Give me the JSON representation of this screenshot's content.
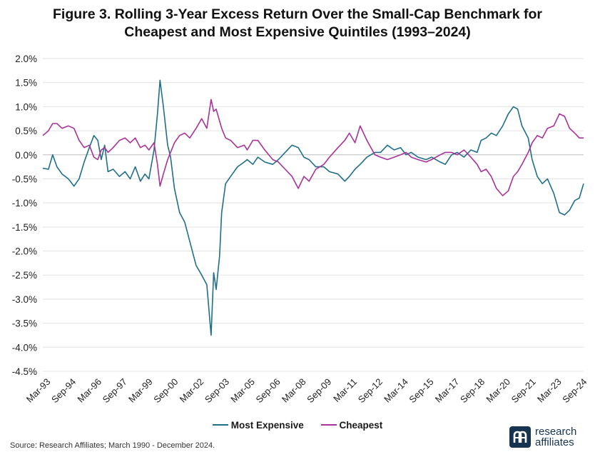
{
  "title": {
    "line1": "Figure 3. Rolling 3-Year Excess Return Over the Small-Cap Benchmark for",
    "line2": "Cheapest and Most Expensive Quintiles (1993–2024)"
  },
  "legend": {
    "most_expensive": "Most Expensive",
    "cheapest": "Cheapest"
  },
  "source": "Source: Research Affiliates; March 1990 - December 2024.",
  "logo": {
    "line1": "research",
    "line2": "affiliates"
  },
  "colors": {
    "most_expensive": "#1f6f8b",
    "cheapest": "#a8329a",
    "grid": "#e3e3e3"
  },
  "chart_data": {
    "type": "line",
    "title": "Figure 3. Rolling 3-Year Excess Return Over the Small-Cap Benchmark for Cheapest and Most Expensive Quintiles (1993–2024)",
    "xlabel": "",
    "ylabel": "",
    "ylim": [
      -4.5,
      2.0
    ],
    "yticks": [
      2.0,
      1.5,
      1.0,
      0.5,
      0.0,
      -0.5,
      -1.0,
      -1.5,
      -2.0,
      -2.5,
      -3.0,
      -3.5,
      -4.0,
      -4.5
    ],
    "ytick_labels": [
      "2.0%",
      "1.5%",
      "1.0%",
      "0.5%",
      "0.0%",
      "-0.5%",
      "-1.0%",
      "-1.5%",
      "-2.0%",
      "-2.5%",
      "-3.0%",
      "-3.5%",
      "-4.0%",
      "-4.5%"
    ],
    "xlim": [
      1993.17,
      2024.92
    ],
    "xticks": [
      1993.17,
      1994.67,
      1996.17,
      1997.67,
      1999.17,
      2000.67,
      2002.17,
      2003.67,
      2005.17,
      2006.67,
      2008.17,
      2009.67,
      2011.17,
      2012.67,
      2014.17,
      2015.67,
      2017.17,
      2018.67,
      2020.17,
      2021.67,
      2023.17,
      2024.67
    ],
    "xtick_labels": [
      "Mar-93",
      "Sep-94",
      "Mar-96",
      "Sep-97",
      "Mar-99",
      "Sep-00",
      "Mar-02",
      "Sep-03",
      "Mar-05",
      "Sep-06",
      "Mar-08",
      "Sep-09",
      "Mar-11",
      "Sep-12",
      "Mar-14",
      "Sep-15",
      "Mar-17",
      "Sep-18",
      "Mar-20",
      "Sep-21",
      "Mar-23",
      "Sep-24"
    ],
    "grid": "horizontal",
    "legend_position": "bottom-center",
    "series": [
      {
        "name": "Most Expensive",
        "color": "#1f6f8b",
        "points": [
          [
            1993.17,
            -0.28
          ],
          [
            1993.5,
            -0.3
          ],
          [
            1993.75,
            0.0
          ],
          [
            1994.0,
            -0.25
          ],
          [
            1994.3,
            -0.4
          ],
          [
            1994.67,
            -0.5
          ],
          [
            1995.0,
            -0.65
          ],
          [
            1995.3,
            -0.5
          ],
          [
            1995.6,
            -0.15
          ],
          [
            1995.9,
            0.15
          ],
          [
            1996.17,
            0.4
          ],
          [
            1996.4,
            0.3
          ],
          [
            1996.6,
            -0.1
          ],
          [
            1996.8,
            0.2
          ],
          [
            1997.0,
            -0.35
          ],
          [
            1997.3,
            -0.3
          ],
          [
            1997.67,
            -0.45
          ],
          [
            1998.0,
            -0.35
          ],
          [
            1998.3,
            -0.5
          ],
          [
            1998.6,
            -0.25
          ],
          [
            1998.9,
            -0.55
          ],
          [
            1999.17,
            -0.4
          ],
          [
            1999.4,
            -0.5
          ],
          [
            1999.7,
            0.1
          ],
          [
            1999.9,
            0.85
          ],
          [
            2000.05,
            1.55
          ],
          [
            2000.25,
            1.0
          ],
          [
            2000.5,
            0.2
          ],
          [
            2000.67,
            -0.05
          ],
          [
            2000.9,
            -0.7
          ],
          [
            2001.2,
            -1.2
          ],
          [
            2001.5,
            -1.4
          ],
          [
            2001.8,
            -1.8
          ],
          [
            2002.17,
            -2.3
          ],
          [
            2002.5,
            -2.5
          ],
          [
            2002.8,
            -2.7
          ],
          [
            2003.05,
            -3.75
          ],
          [
            2003.2,
            -2.45
          ],
          [
            2003.35,
            -2.8
          ],
          [
            2003.55,
            -2.1
          ],
          [
            2003.67,
            -1.2
          ],
          [
            2003.9,
            -0.6
          ],
          [
            2004.2,
            -0.45
          ],
          [
            2004.6,
            -0.25
          ],
          [
            2005.0,
            -0.15
          ],
          [
            2005.17,
            -0.1
          ],
          [
            2005.5,
            -0.2
          ],
          [
            2005.8,
            -0.05
          ],
          [
            2006.2,
            -0.15
          ],
          [
            2006.67,
            -0.2
          ],
          [
            2007.0,
            -0.1
          ],
          [
            2007.4,
            0.05
          ],
          [
            2007.8,
            0.2
          ],
          [
            2008.17,
            0.15
          ],
          [
            2008.5,
            -0.05
          ],
          [
            2008.8,
            -0.1
          ],
          [
            2009.2,
            -0.25
          ],
          [
            2009.67,
            -0.25
          ],
          [
            2010.0,
            -0.35
          ],
          [
            2010.5,
            -0.4
          ],
          [
            2010.9,
            -0.55
          ],
          [
            2011.17,
            -0.45
          ],
          [
            2011.5,
            -0.3
          ],
          [
            2011.8,
            -0.2
          ],
          [
            2012.2,
            -0.05
          ],
          [
            2012.67,
            0.05
          ],
          [
            2013.0,
            0.05
          ],
          [
            2013.4,
            0.2
          ],
          [
            2013.8,
            0.1
          ],
          [
            2014.17,
            0.15
          ],
          [
            2014.5,
            0.0
          ],
          [
            2014.8,
            0.05
          ],
          [
            2015.2,
            -0.05
          ],
          [
            2015.67,
            -0.1
          ],
          [
            2016.0,
            -0.05
          ],
          [
            2016.5,
            -0.15
          ],
          [
            2016.8,
            -0.2
          ],
          [
            2017.17,
            0.0
          ],
          [
            2017.5,
            0.05
          ],
          [
            2017.9,
            -0.05
          ],
          [
            2018.3,
            0.1
          ],
          [
            2018.67,
            0.05
          ],
          [
            2018.9,
            0.3
          ],
          [
            2019.2,
            0.35
          ],
          [
            2019.5,
            0.45
          ],
          [
            2019.8,
            0.4
          ],
          [
            2020.17,
            0.6
          ],
          [
            2020.5,
            0.85
          ],
          [
            2020.8,
            1.0
          ],
          [
            2021.05,
            0.95
          ],
          [
            2021.3,
            0.6
          ],
          [
            2021.67,
            0.35
          ],
          [
            2021.9,
            -0.1
          ],
          [
            2022.2,
            -0.45
          ],
          [
            2022.5,
            -0.6
          ],
          [
            2022.8,
            -0.5
          ],
          [
            2023.17,
            -0.8
          ],
          [
            2023.5,
            -1.2
          ],
          [
            2023.8,
            -1.25
          ],
          [
            2024.1,
            -1.15
          ],
          [
            2024.4,
            -0.95
          ],
          [
            2024.67,
            -0.9
          ],
          [
            2024.92,
            -0.6
          ]
        ]
      },
      {
        "name": "Cheapest",
        "color": "#a8329a",
        "points": [
          [
            1993.17,
            0.4
          ],
          [
            1993.5,
            0.5
          ],
          [
            1993.75,
            0.65
          ],
          [
            1994.0,
            0.65
          ],
          [
            1994.3,
            0.55
          ],
          [
            1994.67,
            0.6
          ],
          [
            1995.0,
            0.55
          ],
          [
            1995.3,
            0.3
          ],
          [
            1995.6,
            0.15
          ],
          [
            1995.9,
            0.2
          ],
          [
            1996.17,
            -0.05
          ],
          [
            1996.4,
            -0.1
          ],
          [
            1996.6,
            0.1
          ],
          [
            1996.8,
            0.15
          ],
          [
            1997.0,
            0.05
          ],
          [
            1997.3,
            0.15
          ],
          [
            1997.67,
            0.3
          ],
          [
            1998.0,
            0.35
          ],
          [
            1998.3,
            0.25
          ],
          [
            1998.6,
            0.35
          ],
          [
            1998.9,
            0.15
          ],
          [
            1999.17,
            0.2
          ],
          [
            1999.4,
            0.1
          ],
          [
            1999.7,
            0.25
          ],
          [
            1999.9,
            -0.2
          ],
          [
            2000.05,
            -0.65
          ],
          [
            2000.25,
            -0.4
          ],
          [
            2000.5,
            -0.1
          ],
          [
            2000.67,
            0.05
          ],
          [
            2000.9,
            0.25
          ],
          [
            2001.2,
            0.4
          ],
          [
            2001.5,
            0.45
          ],
          [
            2001.8,
            0.35
          ],
          [
            2002.17,
            0.55
          ],
          [
            2002.5,
            0.75
          ],
          [
            2002.8,
            0.55
          ],
          [
            2003.05,
            1.15
          ],
          [
            2003.2,
            0.9
          ],
          [
            2003.35,
            0.95
          ],
          [
            2003.55,
            0.7
          ],
          [
            2003.67,
            0.55
          ],
          [
            2003.9,
            0.35
          ],
          [
            2004.2,
            0.3
          ],
          [
            2004.6,
            0.15
          ],
          [
            2005.0,
            0.2
          ],
          [
            2005.17,
            0.1
          ],
          [
            2005.5,
            0.3
          ],
          [
            2005.8,
            0.3
          ],
          [
            2006.2,
            0.1
          ],
          [
            2006.67,
            -0.1
          ],
          [
            2007.0,
            -0.15
          ],
          [
            2007.4,
            -0.3
          ],
          [
            2007.8,
            -0.45
          ],
          [
            2008.17,
            -0.7
          ],
          [
            2008.5,
            -0.45
          ],
          [
            2008.8,
            -0.55
          ],
          [
            2009.2,
            -0.3
          ],
          [
            2009.67,
            -0.2
          ],
          [
            2010.0,
            -0.05
          ],
          [
            2010.5,
            0.15
          ],
          [
            2010.9,
            0.3
          ],
          [
            2011.17,
            0.45
          ],
          [
            2011.5,
            0.25
          ],
          [
            2011.8,
            0.6
          ],
          [
            2012.2,
            0.3
          ],
          [
            2012.67,
            0.0
          ],
          [
            2013.0,
            -0.05
          ],
          [
            2013.4,
            -0.1
          ],
          [
            2013.8,
            -0.05
          ],
          [
            2014.17,
            0.0
          ],
          [
            2014.5,
            0.05
          ],
          [
            2014.8,
            -0.05
          ],
          [
            2015.2,
            -0.1
          ],
          [
            2015.67,
            -0.15
          ],
          [
            2016.0,
            -0.1
          ],
          [
            2016.5,
            0.0
          ],
          [
            2016.8,
            0.05
          ],
          [
            2017.17,
            0.05
          ],
          [
            2017.5,
            0.0
          ],
          [
            2017.9,
            0.1
          ],
          [
            2018.3,
            -0.05
          ],
          [
            2018.67,
            -0.2
          ],
          [
            2018.9,
            -0.35
          ],
          [
            2019.2,
            -0.3
          ],
          [
            2019.5,
            -0.45
          ],
          [
            2019.8,
            -0.7
          ],
          [
            2020.17,
            -0.85
          ],
          [
            2020.5,
            -0.75
          ],
          [
            2020.8,
            -0.45
          ],
          [
            2021.05,
            -0.35
          ],
          [
            2021.3,
            -0.2
          ],
          [
            2021.67,
            0.05
          ],
          [
            2021.9,
            0.25
          ],
          [
            2022.2,
            0.4
          ],
          [
            2022.5,
            0.35
          ],
          [
            2022.8,
            0.55
          ],
          [
            2023.17,
            0.6
          ],
          [
            2023.5,
            0.85
          ],
          [
            2023.8,
            0.8
          ],
          [
            2024.1,
            0.55
          ],
          [
            2024.4,
            0.45
          ],
          [
            2024.67,
            0.35
          ],
          [
            2024.92,
            0.35
          ]
        ]
      }
    ]
  }
}
